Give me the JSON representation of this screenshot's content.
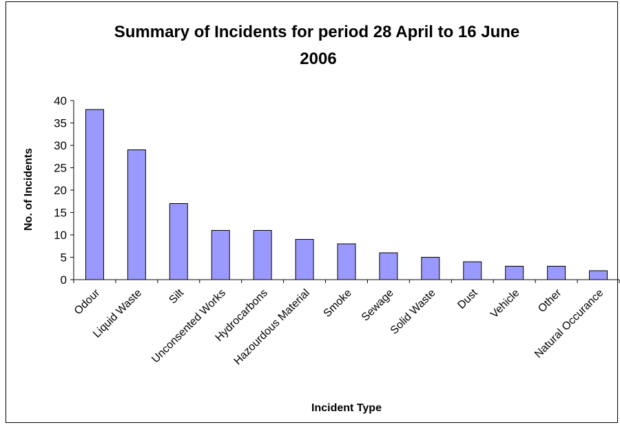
{
  "chart_data": {
    "type": "bar",
    "title_lines": [
      "Summary of Incidents for period 28 April to 16 June",
      "2006"
    ],
    "xlabel": "Incident Type",
    "ylabel": "No. of Incidents",
    "categories": [
      "Odour",
      "Liquid Waste",
      "Silt",
      "Unconsented Works",
      "Hydrocarbons",
      "Hazourdous Material",
      "Smoke",
      "Sewage",
      "Solid Waste",
      "Dust",
      "Vehicle",
      "Other",
      "Natural Occurance"
    ],
    "values": [
      38,
      29,
      17,
      11,
      11,
      9,
      8,
      6,
      5,
      4,
      3,
      3,
      2
    ],
    "ylim": [
      0,
      40
    ],
    "yticks": [
      0,
      5,
      10,
      15,
      20,
      25,
      30,
      35,
      40
    ],
    "grid": false,
    "legend": "none",
    "bar_color": "#9999ff",
    "bar_edge_color": "#000000"
  }
}
